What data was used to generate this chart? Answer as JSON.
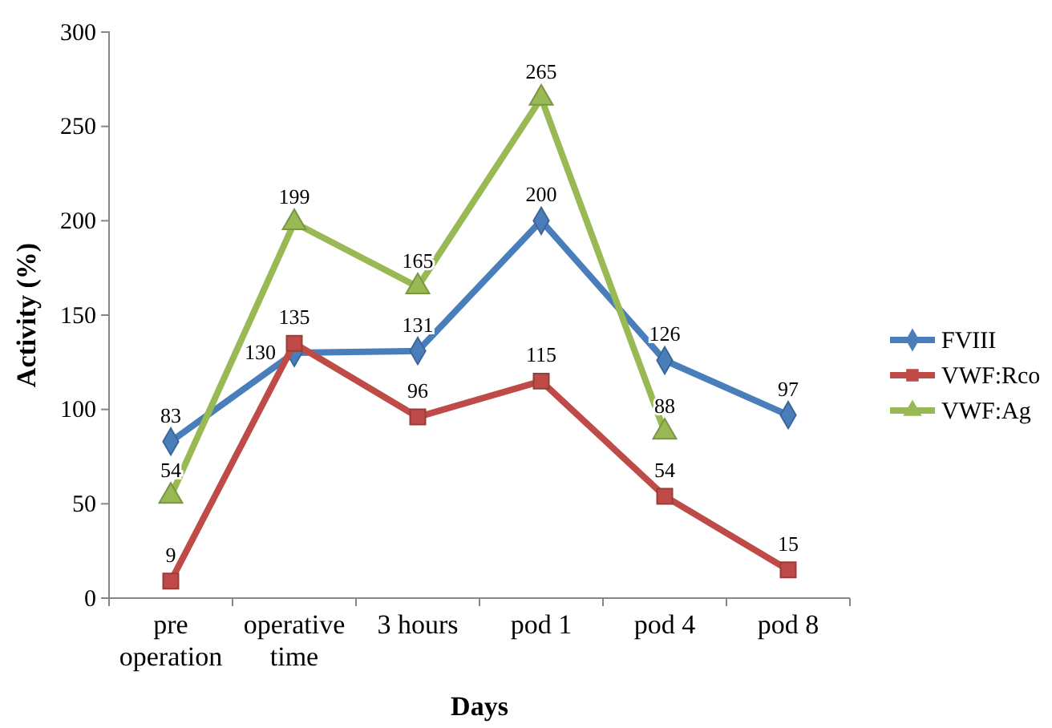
{
  "chart_data": {
    "type": "line",
    "xlabel": "Days",
    "ylabel": "Activity (%)",
    "categories": [
      "pre operation",
      "operative time",
      "3 hours",
      "pod 1",
      "pod 4",
      "pod 8"
    ],
    "ylim": [
      0,
      300
    ],
    "yticks": [
      0,
      50,
      100,
      150,
      200,
      250,
      300
    ],
    "grid": false,
    "legend": "right",
    "data_labels": true,
    "line_style": "solid",
    "series": [
      {
        "name": "FVIII",
        "color": "#4a7ebb",
        "marker": "diamond",
        "values": [
          83,
          130,
          131,
          200,
          126,
          97
        ]
      },
      {
        "name": "VWF:Rco",
        "color": "#be4b48",
        "marker": "square",
        "values": [
          9,
          135,
          96,
          115,
          54,
          15
        ]
      },
      {
        "name": "VWF:Ag",
        "color": "#98b954",
        "marker": "triangle",
        "values": [
          54,
          199,
          165,
          265,
          88,
          null
        ]
      }
    ]
  }
}
